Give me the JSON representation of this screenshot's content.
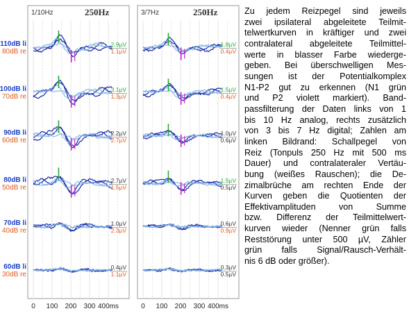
{
  "panels": [
    {
      "header_filter": "1/10Hz",
      "header_stim": "250Hz",
      "right": [
        [
          "2.9µV",
          "1.1µV"
        ],
        [
          "3.1µV",
          "1.3µV"
        ],
        [
          "2.2µV",
          "2.7µV"
        ],
        [
          "2.7µV",
          "1.5µV"
        ],
        [
          "1.0µV",
          "2.3µV"
        ],
        [
          "0.4µV",
          "1.1µV"
        ]
      ]
    },
    {
      "header_filter": "3/7Hz",
      "header_stim": "250Hz",
      "right": [
        [
          "1.8µV",
          "0.4µV"
        ],
        [
          "1.5µV",
          "0.4µV"
        ],
        [
          "1.0µV",
          "0.6µV"
        ],
        [
          "1.5µV",
          "0.5µV"
        ],
        [
          "0.6µV",
          "0.9µV"
        ],
        [
          "0.3µV",
          "0.5µV"
        ]
      ]
    }
  ],
  "levels": [
    {
      "li": "110dB li",
      "re": "80dB re"
    },
    {
      "li": "100dB li",
      "re": "70dB re"
    },
    {
      "li": "90dB li",
      "re": "60dB re"
    },
    {
      "li": "80dB li",
      "re": "50dB re"
    },
    {
      "li": "70dB li",
      "re": "40dB re"
    },
    {
      "li": "60dB li",
      "re": "30dB re"
    }
  ],
  "x_ticks": [
    "0",
    "100",
    "200",
    "300",
    "400ms"
  ],
  "x_ticks_pos": [
    0,
    100,
    200,
    300,
    400
  ],
  "caption_lines": [
    "Zu jedem Reizpegel sind jeweils",
    "zwei ipsilateral abgeleitete Teilmit-",
    "telwertkurven in kräftiger und zwei",
    "contralateral abgeleitete Teilmittel-",
    "werte in blasser Farbe wiederge-",
    "geben. Bei überschwelligen Mes-",
    "sungen ist der Potentialkomplex",
    "N1-P2 gut zu erkennen (N1 grün",
    "und P2 violett markiert). Band-",
    "passfilterung der Daten links von 1",
    "bis 10 Hz analog, rechts zusätzlich",
    "von 3 bis 7 Hz digital; Zahlen am",
    "linken Bildrand: Schallpegel von",
    "Reiz (Tonpuls 250 Hz mit 500 ms",
    "Dauer) und contralateraler Vertäu-",
    "bung (weißes Rauschen); die De-",
    "zimalbrüche am rechten Ende der",
    "Kurven geben die Quotienten der",
    "Effektivamplituden von Summe",
    "bzw. Differenz der Teilmittelwert-",
    "kurven wieder (Nenner grün falls",
    "Reststörung unter 500 µV, Zähler",
    "grün falls Signal/Rausch-Verhält-",
    "nis 6 dB oder größer)."
  ],
  "colors": {
    "ipsi": "#2233aa",
    "contra": "#7fb2e6",
    "n1": "#22aa33",
    "p2": "#cc22cc",
    "li": "#1a3fcc",
    "re": "#e25a1e",
    "grid": "#d0d0d0"
  }
}
